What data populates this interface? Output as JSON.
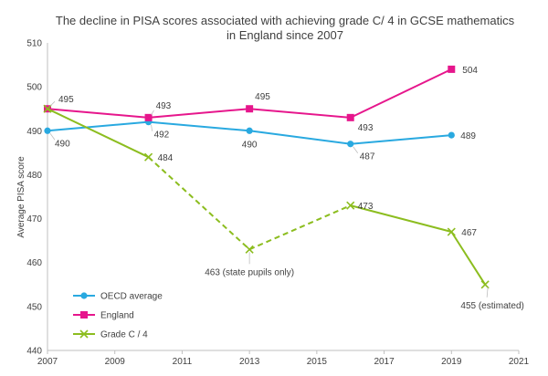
{
  "chart_data": {
    "type": "line",
    "title": "The decline in PISA scores associated with achieving grade C/ 4 in GCSE mathematics in England since 2007",
    "title_lines": [
      "The decline in PISA scores associated with achieving grade C/ 4 in GCSE mathematics",
      "in England since 2007"
    ],
    "xlabel": "",
    "ylabel": "Average PISA score",
    "xlim": [
      2007,
      2021
    ],
    "ylim": [
      440,
      510
    ],
    "x_ticks": [
      "2007",
      "2009",
      "2011",
      "2013",
      "2015",
      "2017",
      "2019",
      "2021"
    ],
    "y_ticks": [
      "440",
      "450",
      "460",
      "470",
      "480",
      "490",
      "500",
      "510"
    ],
    "grid": false,
    "legend_position": "bottom-left",
    "series": [
      {
        "name": "OECD average",
        "color": "#29a9e0",
        "marker": "circle",
        "points": [
          {
            "x": 2007,
            "y": 490,
            "label": "490"
          },
          {
            "x": 2010,
            "y": 492,
            "label": "492"
          },
          {
            "x": 2013,
            "y": 490,
            "label": "490"
          },
          {
            "x": 2016,
            "y": 487,
            "label": "487"
          },
          {
            "x": 2019,
            "y": 489,
            "label": "489"
          }
        ]
      },
      {
        "name": "England",
        "color": "#e6168c",
        "marker": "square",
        "points": [
          {
            "x": 2007,
            "y": 495,
            "label": "495"
          },
          {
            "x": 2010,
            "y": 493,
            "label": "493"
          },
          {
            "x": 2013,
            "y": 495,
            "label": "495"
          },
          {
            "x": 2016,
            "y": 493,
            "label": "493"
          },
          {
            "x": 2019,
            "y": 504,
            "label": "504"
          }
        ]
      },
      {
        "name": "Grade C / 4",
        "color": "#8cbd1f",
        "marker": "x",
        "points": [
          {
            "x": 2007,
            "y": 495,
            "label": ""
          },
          {
            "x": 2010,
            "y": 484,
            "label": "484"
          },
          {
            "x": 2013,
            "y": 463,
            "label": "463 (state pupils only)"
          },
          {
            "x": 2016,
            "y": 473,
            "label": "473"
          },
          {
            "x": 2019,
            "y": 467,
            "label": "467"
          },
          {
            "x": 2020,
            "y": 455,
            "label": "455 (estimated)"
          }
        ],
        "segment_styles": [
          "solid",
          "dashed",
          "dashed",
          "solid",
          "solid"
        ]
      }
    ]
  }
}
